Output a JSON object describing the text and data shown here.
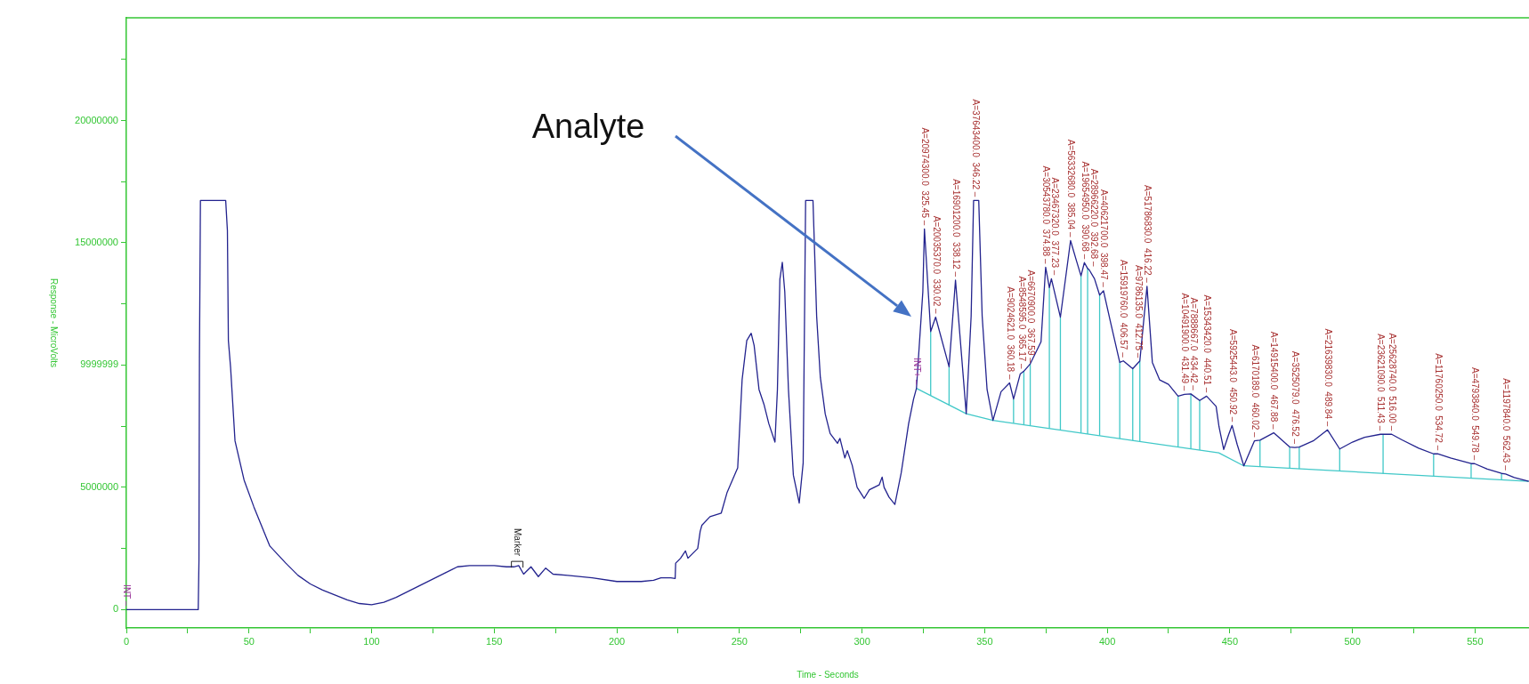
{
  "chart_data": {
    "type": "line",
    "xlabel": "Time - Seconds",
    "ylabel": "Response - MicroVolts",
    "xlim": [
      0,
      572
    ],
    "ylim": [
      -750000,
      24200000
    ],
    "xticks": [
      0,
      {
        "value": 25,
        "label": null
      },
      50,
      {
        "value": 75,
        "label": null
      },
      100,
      {
        "value": 125,
        "label": null
      },
      150,
      {
        "value": 175,
        "label": null
      },
      200,
      {
        "value": 225,
        "label": null
      },
      250,
      {
        "value": 275,
        "label": null
      },
      300,
      {
        "value": 325,
        "label": null
      },
      350,
      {
        "value": 375,
        "label": null
      },
      400,
      {
        "value": 425,
        "label": null
      },
      450,
      {
        "value": 475,
        "label": null
      },
      500,
      {
        "value": 525,
        "label": null
      },
      550
    ],
    "yticks": [
      0,
      {
        "value": 2500000,
        "label": null
      },
      5000000,
      {
        "value": 7500000,
        "label": null
      },
      9999999,
      {
        "value": 12500000,
        "label": null
      },
      15000000,
      {
        "value": 17500000,
        "label": null
      },
      20000000,
      {
        "value": 22500000,
        "label": null
      }
    ],
    "grid": false,
    "legend": false,
    "series": [
      {
        "color": "#23238e",
        "x": [
          0,
          29.3,
          29.6,
          29.8,
          30.2,
          40.5,
          41.2,
          41.6,
          42.5,
          44.3,
          48,
          52,
          58.5,
          65,
          70,
          75,
          80,
          85,
          90,
          95,
          100,
          105,
          110,
          120,
          130,
          135,
          140,
          150,
          155,
          158,
          160,
          162,
          165,
          168,
          171,
          174,
          180,
          190,
          200,
          210,
          215,
          218,
          222,
          223.8,
          224,
          226,
          228,
          229,
          231,
          233,
          234,
          234.7,
          238,
          242.6,
          245,
          248,
          249.3,
          251.1,
          253,
          254.8,
          256,
          258,
          260,
          262,
          264.5,
          265.5,
          266.5,
          267.5,
          268.5,
          270,
          272,
          274.4,
          276,
          277,
          280,
          281.5,
          283,
          285,
          287,
          290,
          291,
          293,
          294,
          296,
          298,
          300.9,
          303,
          305,
          307,
          308.2,
          309,
          311,
          313.4,
          316,
          319,
          321,
          322.2,
          324.8,
          325.45,
          328.0,
          330.02,
          335.5,
          338.12,
          342.5,
          344.5,
          345.5,
          347.6,
          349,
          351,
          353.4,
          356.7,
          360.18,
          361.8,
          364.5,
          366.0,
          368.6,
          373.0,
          374.88,
          376.4,
          377.23,
          380.9,
          383.3,
          385.04,
          387.5,
          389.3,
          390.68,
          392.0,
          392.68,
          394.8,
          396.9,
          398.47,
          401.4,
          405.1,
          406.57,
          410.4,
          413.3,
          416.22,
          418.4,
          421.4,
          425.0,
          428.9,
          431.49,
          434.1,
          434.42,
          437.7,
          440.51,
          444.4,
          445.6,
          447.5,
          449.5,
          450.92,
          453,
          455.7,
          460.02,
          462.3,
          467.88,
          474.4,
          476.52,
          478.3,
          484,
          489.84,
          494.8,
          500,
          505,
          511.43,
          512.5,
          516.0,
          520,
          527,
          533.1,
          534.72,
          540,
          548.4,
          549.78,
          555,
          560.8,
          562.43,
          566,
          571.9
        ],
        "values": [
          0,
          0,
          2000000,
          10300000,
          16730000,
          16730000,
          15500000,
          11000000,
          9900000,
          6900000,
          5300000,
          4200000,
          2600000,
          1900000,
          1400000,
          1050000,
          800000,
          600000,
          400000,
          250000,
          200000,
          300000,
          500000,
          1000000,
          1500000,
          1750000,
          1800000,
          1800000,
          1750000,
          1750000,
          1800000,
          1450000,
          1750000,
          1350000,
          1700000,
          1450000,
          1400000,
          1300000,
          1150000,
          1150000,
          1200000,
          1300000,
          1300000,
          1270000,
          1900000,
          2100000,
          2400000,
          2100000,
          2300000,
          2500000,
          3200000,
          3450000,
          3800000,
          3950000,
          4800000,
          5500000,
          5800000,
          9400000,
          11000000,
          11300000,
          10800000,
          9000000,
          8400000,
          7600000,
          6850000,
          9000000,
          13500000,
          14200000,
          13000000,
          9000000,
          5500000,
          4360000,
          6000000,
          16730000,
          16730000,
          12000000,
          9500000,
          8000000,
          7200000,
          6800000,
          7000000,
          6200000,
          6500000,
          5900000,
          5000000,
          4550000,
          4900000,
          5000000,
          5100000,
          5420000,
          5000000,
          4600000,
          4300000,
          5600000,
          7600000,
          8600000,
          9050000,
          13000000,
          15570000,
          11370000,
          11960000,
          9930000,
          13470000,
          8010000,
          12000000,
          16730000,
          16730000,
          12000000,
          9000000,
          7740000,
          8910000,
          9270000,
          8610000,
          9630000,
          9750000,
          10050000,
          10950000,
          14000000,
          13170000,
          13530000,
          11960000,
          13770000,
          15090000,
          14250000,
          13650000,
          14190000,
          13950000,
          13890000,
          13530000,
          12860000,
          13040000,
          11730000,
          10110000,
          10170000,
          9850000,
          10170000,
          13220000,
          10110000,
          9390000,
          9210000,
          8730000,
          8800000,
          8820000,
          8820000,
          8550000,
          8730000,
          8310000,
          7470000,
          6550000,
          7150000,
          7530000,
          6750000,
          5880000,
          6900000,
          6930000,
          7230000,
          6650000,
          6630000,
          6650000,
          6900000,
          7350000,
          6570000,
          6850000,
          7050000,
          7170000,
          7170000,
          7170000,
          6950000,
          6600000,
          6370000,
          6370000,
          6200000,
          5970000,
          5970000,
          5750000,
          5570000,
          5550000,
          5400000,
          5250000
        ]
      },
      {
        "color": "#40c8c8",
        "x": [
          322.2,
          342.5,
          353.4,
          445.5,
          455.7,
          571.9
        ],
        "values": [
          9050000,
          8010000,
          7740000,
          6410000,
          5880000,
          5250000
        ]
      },
      {
        "color": "#40c8c8",
        "x": [
          328.0,
          328.0
        ],
        "values": [
          8740000,
          11370000
        ]
      },
      {
        "color": "#40c8c8",
        "x": [
          335.5,
          335.5
        ],
        "values": [
          8360000,
          9930000
        ]
      },
      {
        "color": "#40c8c8",
        "x": [
          361.8,
          361.8
        ],
        "values": [
          7620000,
          8610000
        ]
      },
      {
        "color": "#40c8c8",
        "x": [
          366.0,
          366.0
        ],
        "values": [
          7560000,
          9750000
        ]
      },
      {
        "color": "#40c8c8",
        "x": [
          368.6,
          368.6
        ],
        "values": [
          7520000,
          10050000
        ]
      },
      {
        "color": "#40c8c8",
        "x": [
          376.4,
          376.4
        ],
        "values": [
          7410000,
          13170000
        ]
      },
      {
        "color": "#40c8c8",
        "x": [
          380.9,
          380.9
        ],
        "values": [
          7340000,
          11960000
        ]
      },
      {
        "color": "#40c8c8",
        "x": [
          389.3,
          389.3
        ],
        "values": [
          7220000,
          13650000
        ]
      },
      {
        "color": "#40c8c8",
        "x": [
          392.0,
          392.0
        ],
        "values": [
          7180000,
          13950000
        ]
      },
      {
        "color": "#40c8c8",
        "x": [
          396.9,
          396.9
        ],
        "values": [
          7110000,
          12860000
        ]
      },
      {
        "color": "#40c8c8",
        "x": [
          405.1,
          405.1
        ],
        "values": [
          6990000,
          10110000
        ]
      },
      {
        "color": "#40c8c8",
        "x": [
          410.4,
          410.4
        ],
        "values": [
          6920000,
          9850000
        ]
      },
      {
        "color": "#40c8c8",
        "x": [
          413.3,
          413.3
        ],
        "values": [
          6870000,
          10170000
        ]
      },
      {
        "color": "#40c8c8",
        "x": [
          428.9,
          428.9
        ],
        "values": [
          6650000,
          8730000
        ]
      },
      {
        "color": "#40c8c8",
        "x": [
          434.1,
          434.1
        ],
        "values": [
          6580000,
          8820000
        ]
      },
      {
        "color": "#40c8c8",
        "x": [
          437.7,
          437.7
        ],
        "values": [
          6520000,
          8550000
        ]
      },
      {
        "color": "#40c8c8",
        "x": [
          462.3,
          462.3
        ],
        "values": [
          5840000,
          6930000
        ]
      },
      {
        "color": "#40c8c8",
        "x": [
          474.4,
          474.4
        ],
        "values": [
          5780000,
          6650000
        ]
      },
      {
        "color": "#40c8c8",
        "x": [
          478.3,
          478.3
        ],
        "values": [
          5750000,
          6650000
        ]
      },
      {
        "color": "#40c8c8",
        "x": [
          494.8,
          494.8
        ],
        "values": [
          5660000,
          6570000
        ]
      },
      {
        "color": "#40c8c8",
        "x": [
          512.5,
          512.5
        ],
        "values": [
          5560000,
          7170000
        ]
      },
      {
        "color": "#40c8c8",
        "x": [
          533.1,
          533.1
        ],
        "values": [
          5450000,
          6370000
        ]
      },
      {
        "color": "#40c8c8",
        "x": [
          548.4,
          548.4
        ],
        "values": [
          5360000,
          5970000
        ]
      },
      {
        "color": "#40c8c8",
        "x": [
          560.8,
          560.8
        ],
        "values": [
          5290000,
          5570000
        ]
      }
    ],
    "annotations": [
      "Analyte",
      {
        "text": "Marker",
        "x": 159.2,
        "y": 1900000
      },
      {
        "text": "INT –",
        "x": 0,
        "y": 0
      },
      {
        "text": "INT+ –",
        "x": 322.2,
        "y": 9050000
      },
      {
        "text": "A=20974300.0  325.45 –",
        "x": 325.45,
        "y": 15570000
      },
      {
        "text": "A=20035370.0  330.02 –",
        "x": 330.02,
        "y": 11960000
      },
      {
        "text": "A=16901200.0  338.12 –",
        "x": 338.12,
        "y": 13470000
      },
      {
        "text": "A=37643400.0  346.22 –",
        "x": 346.22,
        "y": 16730000
      },
      {
        "text": "A=9024621.0  360.18 –",
        "x": 360.18,
        "y": 9270000
      },
      {
        "text": "A=8548595.0  365.17 –",
        "x": 365.17,
        "y": 9700000
      },
      {
        "text": "A=6670900.0  367.59 –",
        "x": 367.59,
        "y": 9950000
      },
      {
        "text": "A=30543780.0  374.88 –",
        "x": 374.88,
        "y": 14000000
      },
      {
        "text": "A=23467320.0  377.23 –",
        "x": 377.23,
        "y": 13530000
      },
      {
        "text": "A=56332680.0  385.04 –",
        "x": 385.04,
        "y": 15090000
      },
      {
        "text": "A=19654950.0  390.68 –",
        "x": 390.68,
        "y": 14190000
      },
      {
        "text": "A=28966220.0  392.68 –",
        "x": 392.68,
        "y": 13890000
      },
      {
        "text": "A=40621700.0  398.47 –",
        "x": 398.47,
        "y": 13040000
      },
      {
        "text": "A=15919760.0  406.57 –",
        "x": 406.57,
        "y": 10170000
      },
      {
        "text": "A=9786135.0  412.75 –",
        "x": 412.75,
        "y": 10150000
      },
      {
        "text": "A=51786830.0  416.22 –",
        "x": 416.22,
        "y": 13220000
      },
      {
        "text": "A=10491900.0  431.49 –",
        "x": 431.49,
        "y": 8800000
      },
      {
        "text": "A=7888667.0  434.42 –",
        "x": 434.42,
        "y": 8820000
      },
      {
        "text": "A=15343420.0  440.51 –",
        "x": 440.51,
        "y": 8730000
      },
      {
        "text": "A=5925443.0  450.92 –",
        "x": 450.92,
        "y": 7530000
      },
      {
        "text": "A=6170189.0  460.02 –",
        "x": 460.02,
        "y": 6900000
      },
      {
        "text": "A=14915400.0  467.88 –",
        "x": 467.88,
        "y": 7230000
      },
      {
        "text": "A=3525079.0  476.52 –",
        "x": 476.52,
        "y": 6630000
      },
      {
        "text": "A=21639830.0  489.84 –",
        "x": 489.84,
        "y": 7350000
      },
      {
        "text": "A=23621090.0  511.43 –",
        "x": 511.43,
        "y": 7170000
      },
      {
        "text": "A=25628740.0  516.00 –",
        "x": 516.0,
        "y": 7170000
      },
      {
        "text": "A=11760250.0  534.72 –",
        "x": 534.72,
        "y": 6370000
      },
      {
        "text": "A=4793840.0  549.78 –",
        "x": 549.78,
        "y": 5970000
      },
      {
        "text": "A=1197840.0  562.43 –",
        "x": 562.43,
        "y": 5550000
      }
    ]
  }
}
